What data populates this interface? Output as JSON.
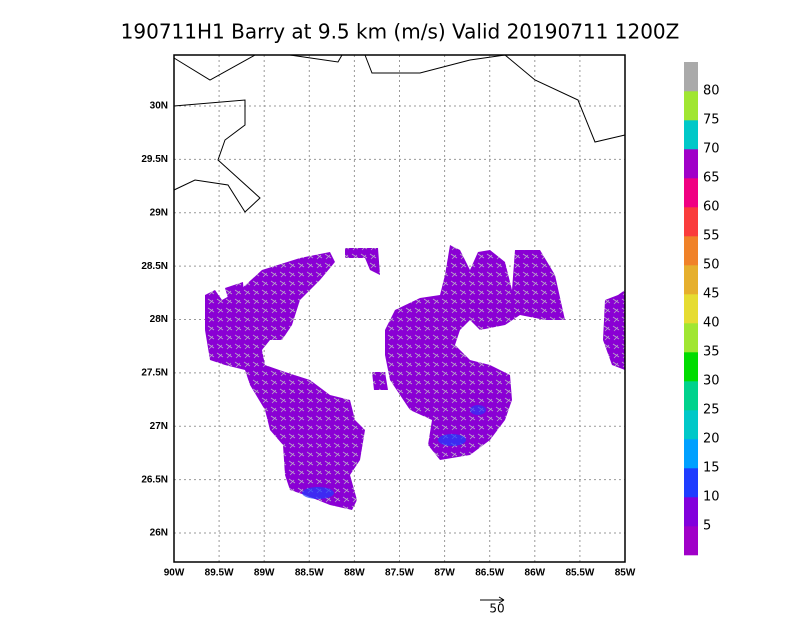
{
  "title": "190711H1 Barry at 9.5 km (m/s) Valid 20190711 1200Z",
  "map": {
    "lon_ticks": [
      {
        "value": -90,
        "label": "90W"
      },
      {
        "value": -89.5,
        "label": "89.5W"
      },
      {
        "value": -89,
        "label": "89W"
      },
      {
        "value": -88.5,
        "label": "88.5W"
      },
      {
        "value": -88,
        "label": "88W"
      },
      {
        "value": -87.5,
        "label": "87.5W"
      },
      {
        "value": -87,
        "label": "87W"
      },
      {
        "value": -86.5,
        "label": "86.5W"
      },
      {
        "value": -86,
        "label": "86W"
      },
      {
        "value": -85.5,
        "label": "85.5W"
      },
      {
        "value": -85,
        "label": "85W"
      }
    ],
    "lat_ticks": [
      {
        "value": 30,
        "label": "30N"
      },
      {
        "value": 29.5,
        "label": "29.5N"
      },
      {
        "value": 29,
        "label": "29N"
      },
      {
        "value": 28.5,
        "label": "28.5N"
      },
      {
        "value": 28,
        "label": "28N"
      },
      {
        "value": 27.5,
        "label": "27.5N"
      },
      {
        "value": 27,
        "label": "27N"
      },
      {
        "value": 26.5,
        "label": "26.5N"
      },
      {
        "value": 26,
        "label": "26N"
      }
    ]
  },
  "colorbar": {
    "colors": [
      "#a000c8",
      "#8200dc",
      "#1e3cff",
      "#00a0ff",
      "#00c8c8",
      "#00d28c",
      "#00dc00",
      "#a0e632",
      "#e6dc32",
      "#e6af2d",
      "#f08228",
      "#fa3c3c",
      "#f00082",
      "#a000c8",
      "#00c8c8",
      "#a0e632",
      "#aaaaaa"
    ],
    "labels": [
      5,
      10,
      15,
      20,
      25,
      30,
      35,
      40,
      45,
      50,
      55,
      60,
      65,
      70,
      75,
      80
    ]
  },
  "reference_vector": "50"
}
